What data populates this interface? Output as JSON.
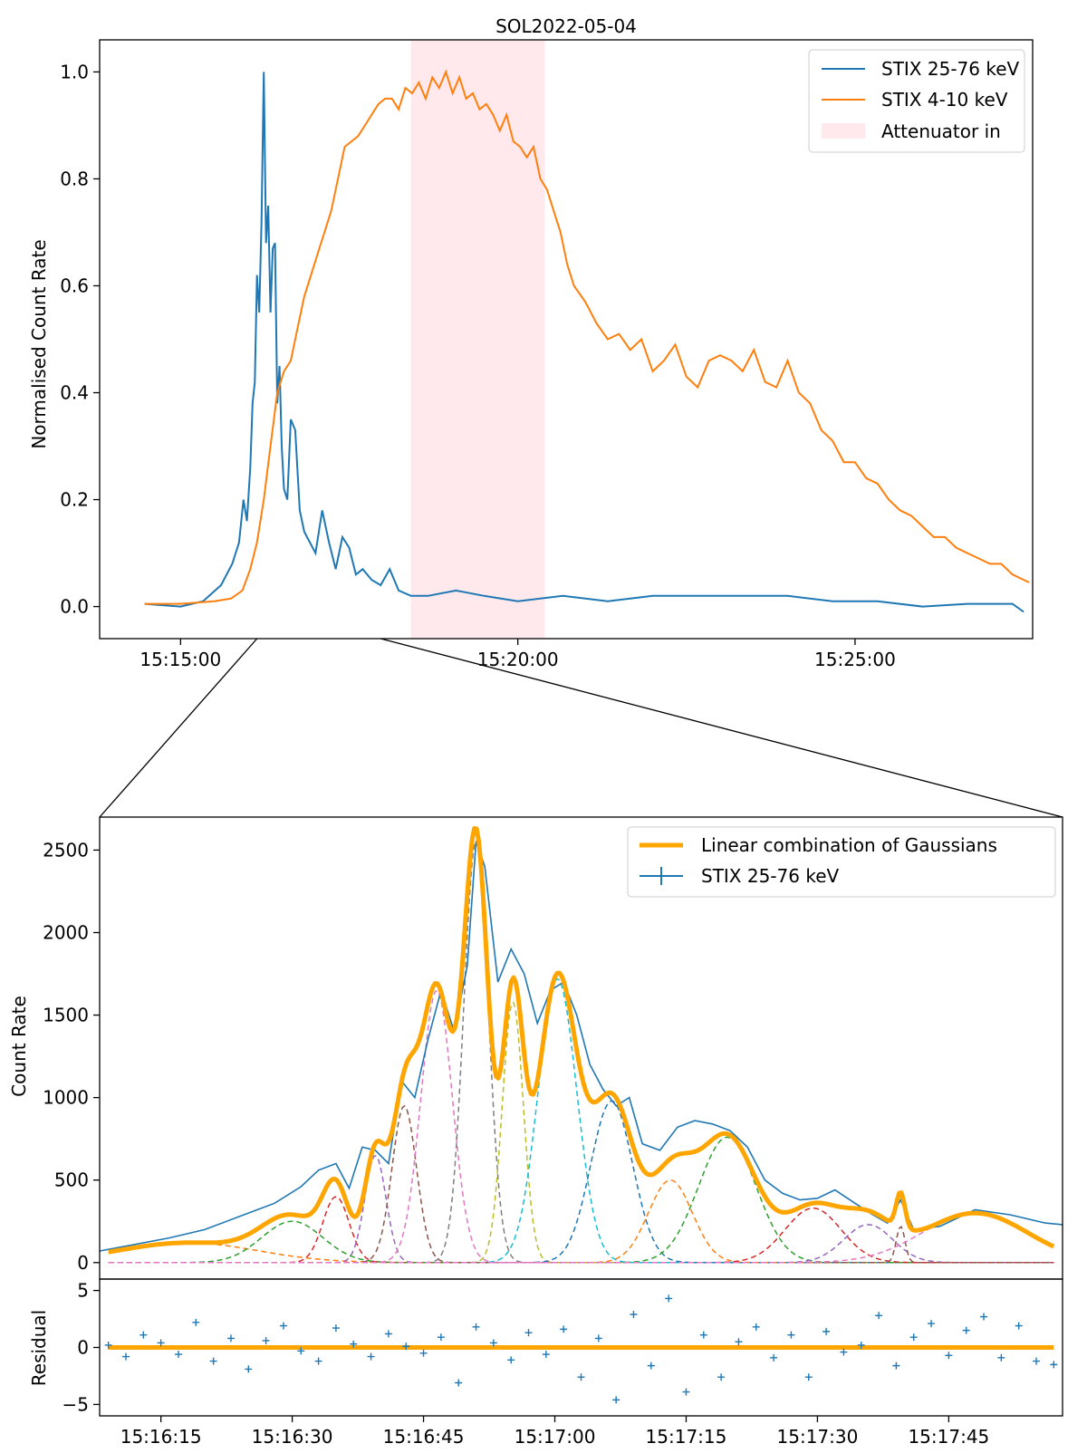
{
  "chart_data": [
    {
      "type": "line",
      "title": "SOL2022-05-04",
      "ylabel": "Normalised Count Rate",
      "xlabel": "",
      "xlim_seconds_since_15_10_00": [
        228,
        1058
      ],
      "ylim": [
        -0.06,
        1.06
      ],
      "yticks": [
        0.0,
        0.2,
        0.4,
        0.6,
        0.8,
        1.0
      ],
      "ytick_labels": [
        "0.0",
        "0.2",
        "0.4",
        "0.6",
        "0.8",
        "1.0"
      ],
      "xticks_seconds": [
        300,
        600,
        900
      ],
      "xtick_labels": [
        "15:15:00",
        "15:20:00",
        "15:25:00"
      ],
      "attenuator_span_seconds": [
        505,
        624
      ],
      "legend": [
        "STIX 25-76 keV",
        "STIX 4-10 keV",
        "Attenuator in"
      ],
      "legend_position": "top-right",
      "colors": {
        "hxr": "#1f77b4",
        "sxr": "#ff7f0e",
        "attenuator": "#ffc0cb"
      },
      "series": [
        {
          "name": "STIX 25-76 keV",
          "x": [
            268,
            300,
            320,
            336,
            346,
            352,
            356,
            359,
            362,
            364,
            366,
            368,
            370,
            372,
            374,
            376,
            378,
            380,
            382,
            384,
            386,
            388,
            390,
            392,
            395,
            398,
            402,
            406,
            410,
            415,
            420,
            426,
            432,
            438,
            444,
            450,
            456,
            462,
            470,
            478,
            486,
            494,
            505,
            520,
            545,
            570,
            600,
            640,
            680,
            720,
            760,
            800,
            840,
            880,
            920,
            960,
            1000,
            1040,
            1050
          ],
          "values": [
            0.005,
            0.0,
            0.01,
            0.04,
            0.08,
            0.12,
            0.2,
            0.16,
            0.26,
            0.38,
            0.42,
            0.62,
            0.55,
            0.72,
            1.0,
            0.68,
            0.75,
            0.55,
            0.67,
            0.68,
            0.38,
            0.45,
            0.3,
            0.22,
            0.2,
            0.35,
            0.33,
            0.18,
            0.14,
            0.12,
            0.1,
            0.18,
            0.12,
            0.07,
            0.13,
            0.11,
            0.06,
            0.07,
            0.05,
            0.04,
            0.07,
            0.03,
            0.02,
            0.02,
            0.03,
            0.02,
            0.01,
            0.02,
            0.01,
            0.02,
            0.02,
            0.02,
            0.02,
            0.01,
            0.01,
            0.0,
            0.005,
            0.005,
            -0.01
          ]
        },
        {
          "name": "STIX 4-10 keV",
          "x": [
            268,
            300,
            330,
            345,
            355,
            362,
            368,
            374,
            380,
            386,
            392,
            398,
            404,
            410,
            416,
            422,
            428,
            434,
            440,
            446,
            452,
            458,
            464,
            470,
            476,
            482,
            488,
            494,
            500,
            506,
            512,
            518,
            524,
            530,
            536,
            542,
            548,
            554,
            560,
            566,
            572,
            578,
            584,
            590,
            596,
            602,
            608,
            614,
            620,
            626,
            632,
            638,
            644,
            650,
            660,
            670,
            680,
            690,
            700,
            710,
            720,
            730,
            740,
            750,
            760,
            770,
            780,
            790,
            800,
            810,
            820,
            830,
            840,
            850,
            860,
            870,
            880,
            890,
            900,
            910,
            920,
            930,
            940,
            950,
            960,
            970,
            980,
            990,
            1000,
            1010,
            1020,
            1030,
            1040,
            1050,
            1055
          ],
          "values": [
            0.005,
            0.005,
            0.01,
            0.015,
            0.03,
            0.07,
            0.12,
            0.2,
            0.3,
            0.4,
            0.44,
            0.46,
            0.52,
            0.58,
            0.62,
            0.66,
            0.7,
            0.74,
            0.8,
            0.86,
            0.87,
            0.88,
            0.9,
            0.92,
            0.94,
            0.95,
            0.95,
            0.93,
            0.97,
            0.96,
            0.98,
            0.95,
            0.99,
            0.97,
            1.0,
            0.96,
            0.99,
            0.95,
            0.96,
            0.93,
            0.94,
            0.92,
            0.89,
            0.92,
            0.87,
            0.86,
            0.84,
            0.86,
            0.8,
            0.78,
            0.74,
            0.7,
            0.64,
            0.6,
            0.57,
            0.53,
            0.5,
            0.51,
            0.48,
            0.5,
            0.44,
            0.46,
            0.49,
            0.43,
            0.41,
            0.46,
            0.47,
            0.46,
            0.44,
            0.48,
            0.42,
            0.41,
            0.46,
            0.4,
            0.38,
            0.33,
            0.31,
            0.27,
            0.27,
            0.24,
            0.23,
            0.2,
            0.18,
            0.17,
            0.15,
            0.13,
            0.13,
            0.11,
            0.1,
            0.09,
            0.08,
            0.08,
            0.06,
            0.05,
            0.045
          ]
        }
      ]
    },
    {
      "type": "line",
      "title": "",
      "ylabel": "Count Rate",
      "xlim_seconds_since_15_16_00": [
        8,
        118
      ],
      "ylim": [
        -100,
        2700
      ],
      "yticks": [
        0,
        500,
        1000,
        1500,
        2000,
        2500
      ],
      "ytick_labels": [
        "0",
        "500",
        "1000",
        "1500",
        "2000",
        "2500"
      ],
      "legend": [
        "Linear combination of Gaussians",
        "STIX 25-76 keV"
      ],
      "legend_position": "top-right",
      "colors": {
        "fit": "#ffa500",
        "data": "#1f77b4"
      },
      "gaussians": [
        {
          "center": 18.0,
          "amp": 120,
          "sigma": 8.0,
          "color": "#ff7f0e"
        },
        {
          "center": 30.0,
          "amp": 250,
          "sigma": 3.5,
          "color": "#2ca02c"
        },
        {
          "center": 35.0,
          "amp": 400,
          "sigma": 1.5,
          "color": "#d62728"
        },
        {
          "center": 39.5,
          "amp": 650,
          "sigma": 1.2,
          "color": "#9467bd"
        },
        {
          "center": 42.8,
          "amp": 950,
          "sigma": 1.4,
          "color": "#8c564b"
        },
        {
          "center": 46.5,
          "amp": 1650,
          "sigma": 1.8,
          "color": "#e377c2"
        },
        {
          "center": 51.0,
          "amp": 2560,
          "sigma": 1.4,
          "color": "#7f7f7f"
        },
        {
          "center": 55.2,
          "amp": 1580,
          "sigma": 1.2,
          "color": "#bcbd22"
        },
        {
          "center": 60.3,
          "amp": 1720,
          "sigma": 2.2,
          "color": "#17becf"
        },
        {
          "center": 66.5,
          "amp": 980,
          "sigma": 2.4,
          "color": "#1f77b4"
        },
        {
          "center": 73.2,
          "amp": 500,
          "sigma": 2.5,
          "color": "#ff7f0e"
        },
        {
          "center": 79.7,
          "amp": 760,
          "sigma": 3.3,
          "color": "#2ca02c"
        },
        {
          "center": 89.5,
          "amp": 330,
          "sigma": 3.2,
          "color": "#d62728"
        },
        {
          "center": 95.8,
          "amp": 230,
          "sigma": 2.8,
          "color": "#9467bd"
        },
        {
          "center": 99.5,
          "amp": 220,
          "sigma": 0.5,
          "color": "#8c564b"
        },
        {
          "center": 108.0,
          "amp": 300,
          "sigma": 6.0,
          "color": "#e377c2"
        }
      ],
      "data_series": {
        "name": "STIX 25-76 keV",
        "x": [
          8,
          12,
          16,
          20,
          24,
          28,
          31,
          33,
          35,
          36.5,
          38,
          39.5,
          41,
          42.5,
          44,
          45.5,
          47,
          48.5,
          50,
          51,
          52,
          53.5,
          55,
          56.5,
          58,
          59.5,
          61,
          62.5,
          64,
          65.5,
          67,
          68.5,
          70,
          72,
          74,
          76,
          78,
          80,
          82,
          84,
          86,
          88,
          90,
          92,
          94,
          96,
          98,
          99.5,
          101,
          104,
          108,
          112,
          116,
          118
        ],
        "values": [
          70,
          110,
          150,
          200,
          280,
          360,
          460,
          560,
          600,
          450,
          700,
          680,
          600,
          1100,
          1000,
          1350,
          1650,
          1400,
          1800,
          2550,
          2400,
          1700,
          1900,
          1750,
          1450,
          1650,
          1700,
          1500,
          1200,
          1050,
          950,
          1000,
          720,
          680,
          820,
          860,
          840,
          800,
          700,
          500,
          420,
          380,
          390,
          440,
          370,
          300,
          240,
          380,
          200,
          220,
          320,
          290,
          240,
          230
        ]
      }
    },
    {
      "type": "scatter",
      "title": "",
      "ylabel": "Residual",
      "xlim_seconds_since_15_16_00": [
        8,
        118
      ],
      "ylim": [
        -6,
        6
      ],
      "yticks": [
        -5,
        0,
        5
      ],
      "ytick_labels": [
        "−5",
        "0",
        "5"
      ],
      "xticks_seconds": [
        15,
        30,
        45,
        60,
        75,
        90,
        105
      ],
      "xtick_labels": [
        "15:16:15",
        "15:16:30",
        "15:16:45",
        "15:17:00",
        "15:17:15",
        "15:17:30",
        "15:17:45"
      ],
      "colors": {
        "points": "#1f77b4",
        "zero": "#ffa500"
      },
      "x": [
        9,
        11,
        13,
        15,
        17,
        19,
        21,
        23,
        25,
        27,
        29,
        31,
        33,
        35,
        37,
        39,
        41,
        43,
        45,
        47,
        49,
        51,
        53,
        55,
        57,
        59,
        61,
        63,
        65,
        67,
        69,
        71,
        73,
        75,
        77,
        79,
        81,
        83,
        85,
        87,
        89,
        91,
        93,
        95,
        97,
        99,
        101,
        103,
        105,
        107,
        109,
        111,
        113,
        115,
        117
      ],
      "values": [
        0.2,
        -0.8,
        1.1,
        0.4,
        -0.6,
        2.2,
        -1.2,
        0.8,
        -1.9,
        0.6,
        1.9,
        -0.3,
        -1.2,
        1.7,
        0.3,
        -0.8,
        1.2,
        0.1,
        -0.5,
        0.9,
        -3.1,
        1.8,
        0.4,
        -1.1,
        1.3,
        -0.6,
        1.6,
        -2.6,
        0.8,
        -4.6,
        2.9,
        -1.6,
        4.3,
        -3.9,
        1.1,
        -2.6,
        0.5,
        1.8,
        -0.9,
        1.1,
        -2.6,
        1.4,
        -0.4,
        0.2,
        2.8,
        -1.6,
        0.9,
        2.1,
        -0.7,
        1.5,
        2.7,
        -0.9,
        1.9,
        -1.2,
        -1.5
      ]
    }
  ]
}
